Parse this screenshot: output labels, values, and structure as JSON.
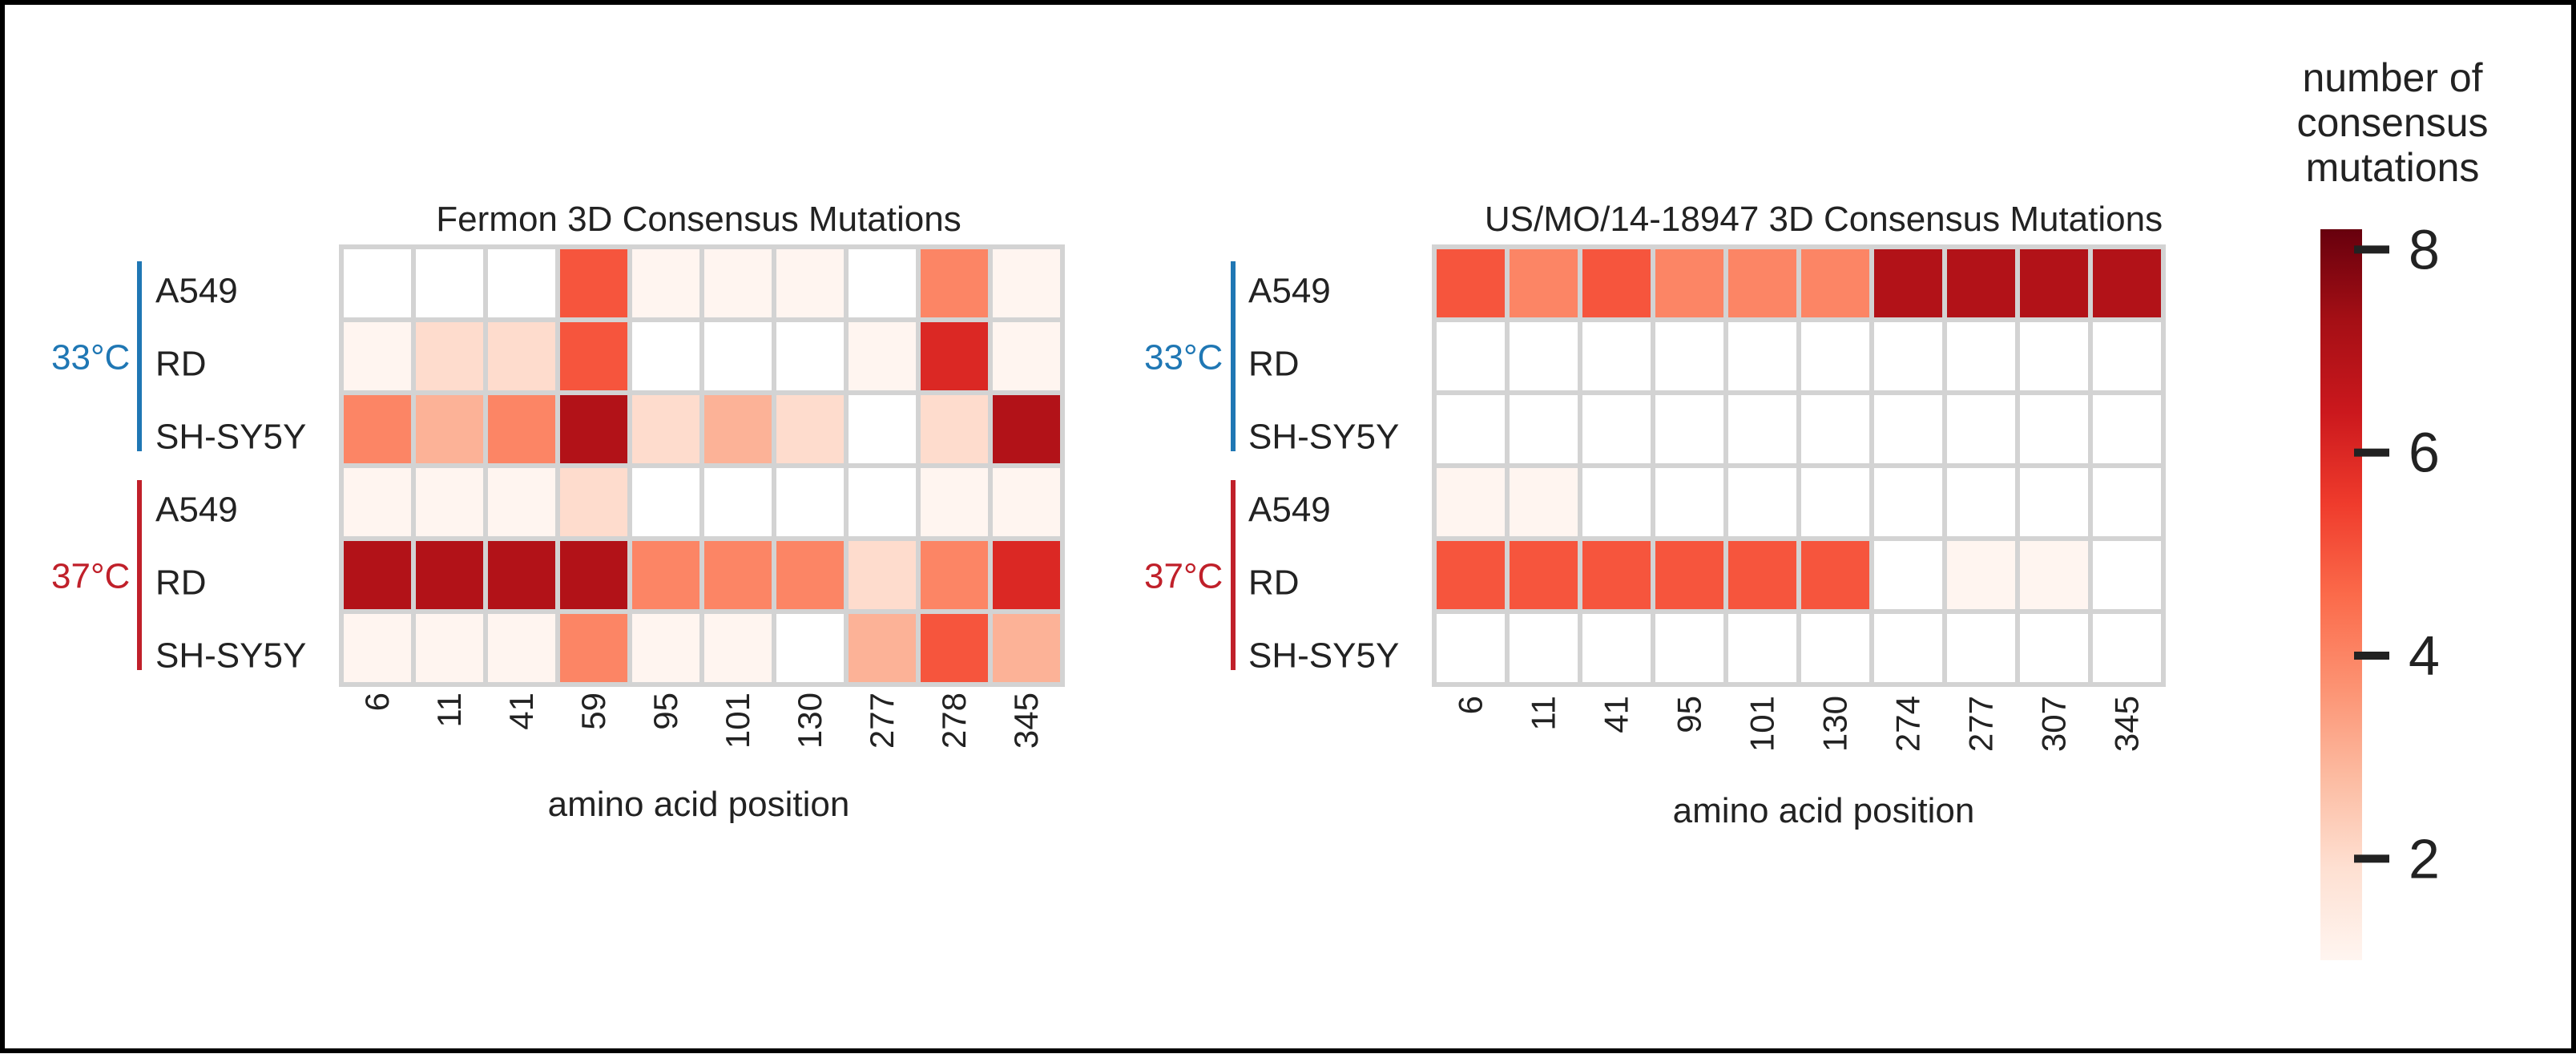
{
  "chart_data": [
    {
      "type": "heatmap",
      "title": "Fermon 3D Consensus Mutations",
      "xlabel": "amino acid position",
      "x_categories": [
        "6",
        "11",
        "41",
        "59",
        "95",
        "101",
        "130",
        "277",
        "278",
        "345"
      ],
      "groups": [
        {
          "label": "33°C",
          "color": "#1f77b4",
          "rows": [
            "A549",
            "RD",
            "SH-SY5Y"
          ]
        },
        {
          "label": "37°C",
          "color": "#c0202a",
          "rows": [
            "A549",
            "RD",
            "SH-SY5Y"
          ]
        }
      ],
      "values": [
        [
          0,
          0,
          0,
          5,
          1,
          1,
          1,
          0,
          4,
          1
        ],
        [
          1,
          2,
          2,
          5,
          0,
          0,
          0,
          1,
          6,
          1
        ],
        [
          4,
          3,
          4,
          7,
          2,
          3,
          2,
          0,
          2,
          7
        ],
        [
          1,
          1,
          1,
          2,
          0,
          0,
          0,
          0,
          1,
          1
        ],
        [
          7,
          7,
          7,
          7,
          4,
          4,
          4,
          2,
          4,
          6
        ],
        [
          1,
          1,
          1,
          4,
          1,
          1,
          0,
          3,
          5,
          3
        ]
      ]
    },
    {
      "type": "heatmap",
      "title": "US/MO/14-18947 3D Consensus Mutations",
      "xlabel": "amino acid position",
      "x_categories": [
        "6",
        "11",
        "41",
        "95",
        "101",
        "130",
        "274",
        "277",
        "307",
        "345"
      ],
      "groups": [
        {
          "label": "33°C",
          "color": "#1f77b4",
          "rows": [
            "A549",
            "RD",
            "SH-SY5Y"
          ]
        },
        {
          "label": "37°C",
          "color": "#c0202a",
          "rows": [
            "A549",
            "RD",
            "SH-SY5Y"
          ]
        }
      ],
      "values": [
        [
          5,
          4,
          5,
          4,
          4,
          4,
          7,
          7,
          7,
          7
        ],
        [
          0,
          0,
          0,
          0,
          0,
          0,
          0,
          0,
          0,
          0
        ],
        [
          0,
          0,
          0,
          0,
          0,
          0,
          0,
          0,
          0,
          0
        ],
        [
          1,
          1,
          0,
          0,
          0,
          0,
          0,
          0,
          0,
          0
        ],
        [
          5,
          5,
          5,
          5,
          5,
          5,
          0,
          1,
          1,
          0
        ],
        [
          0,
          0,
          0,
          0,
          0,
          0,
          0,
          0,
          0,
          0
        ]
      ]
    }
  ],
  "colorbar": {
    "title_lines": [
      "number of",
      "consensus",
      "mutations"
    ],
    "ticks": [
      2,
      4,
      6,
      8
    ],
    "range": [
      1,
      8.2
    ]
  },
  "colors": {
    "scale": [
      "#fff5f0",
      "#fee0d2",
      "#fcbba1",
      "#fc9272",
      "#fb6a4a",
      "#ef3b2c",
      "#cb181d",
      "#a50f15",
      "#67000d"
    ],
    "cell_border": "#d3d3d3",
    "temp_33": "#1f77b4",
    "temp_37": "#c0202a"
  }
}
